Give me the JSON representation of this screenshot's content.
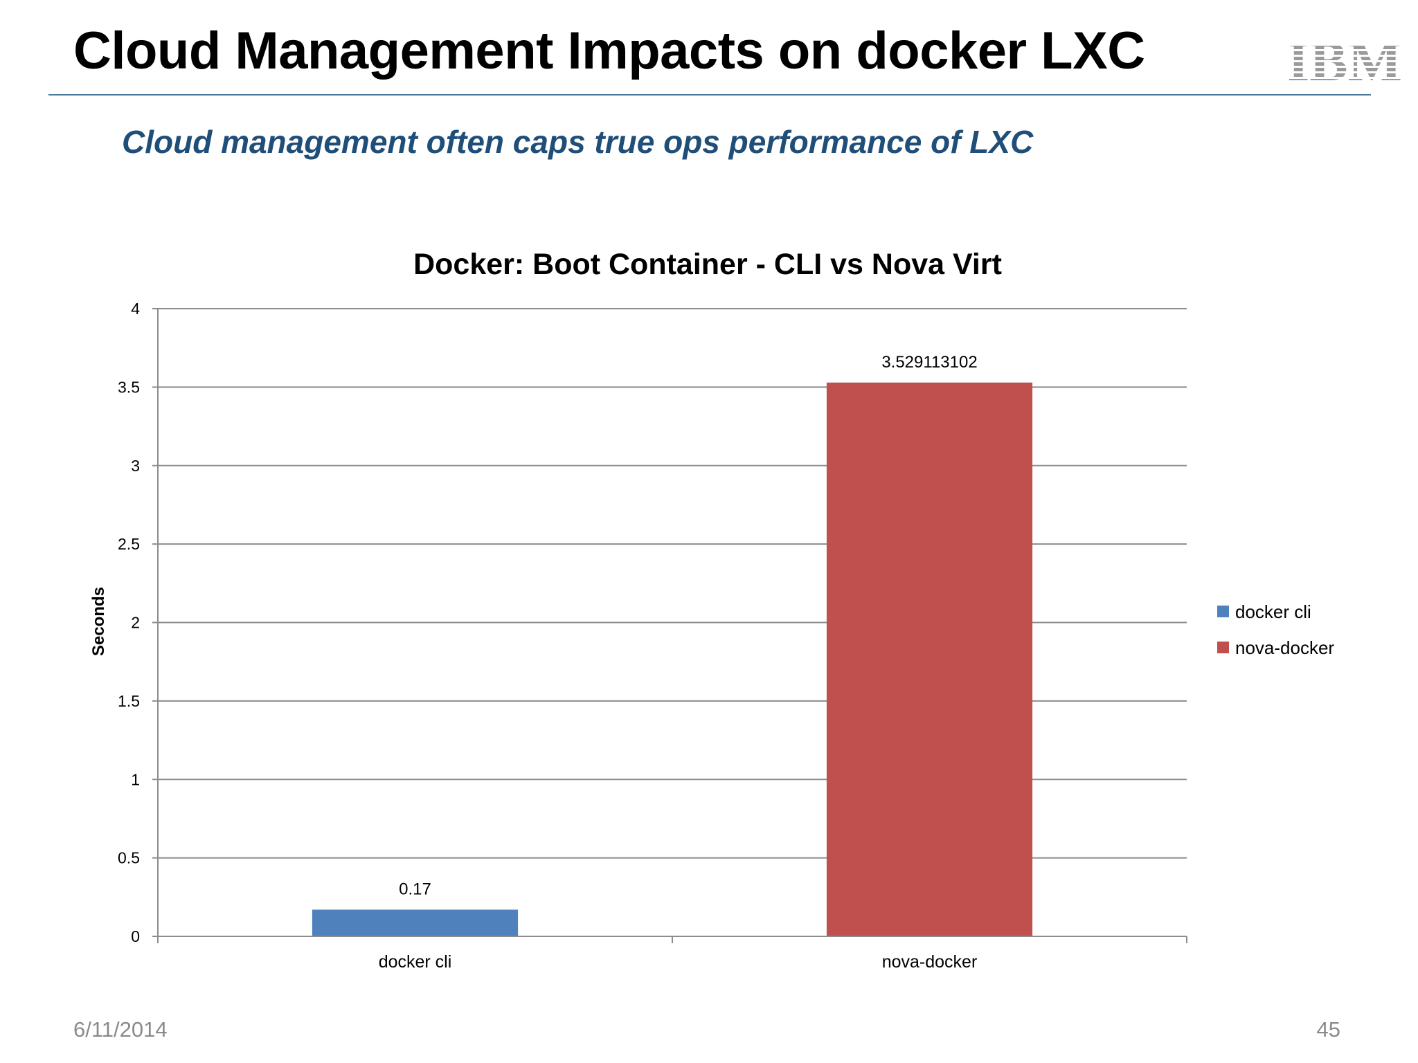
{
  "slide": {
    "title": "Cloud Management Impacts on docker LXC",
    "subtitle": "Cloud management often caps true ops performance of LXC",
    "logo_text": "IBM",
    "date": "6/11/2014",
    "page_number": "45"
  },
  "colors": {
    "subtitle": "#1f4e79",
    "rule": "#4a7a9c",
    "docker_cli": "#4f81bd",
    "nova_docker": "#c0504d",
    "gridline": "#8c8c8c",
    "footer": "#8a8a8a",
    "logo": "#9a9a9a"
  },
  "chart_data": {
    "type": "bar",
    "title": "Docker: Boot Container - CLI vs Nova Virt",
    "xlabel": "",
    "ylabel": "Seconds",
    "ylim": [
      0,
      4
    ],
    "yticks": [
      "0",
      "0.5",
      "1",
      "1.5",
      "2",
      "2.5",
      "3",
      "3.5",
      "4"
    ],
    "categories": [
      "docker cli",
      "nova-docker"
    ],
    "series": [
      {
        "name": "docker cli",
        "values": [
          0.17,
          null
        ],
        "color": "#4f81bd",
        "data_label": "0.17"
      },
      {
        "name": "nova-docker",
        "values": [
          null,
          3.529113102
        ],
        "color": "#c0504d",
        "data_label": "3.529113102"
      }
    ],
    "grid": true,
    "legend_position": "right"
  }
}
